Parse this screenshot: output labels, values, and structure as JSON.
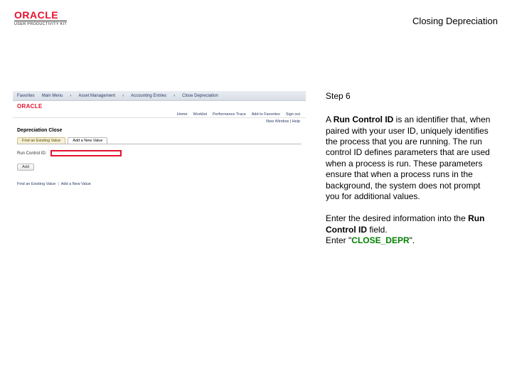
{
  "header": {
    "brand": "ORACLE",
    "brand_sub": "USER PRODUCTIVITY KIT",
    "doc_title": "Closing Depreciation"
  },
  "shot": {
    "topnav": [
      "Favorites",
      "Main Menu",
      "Asset Management",
      "Accounting Entries",
      "Close Depreciation"
    ],
    "logo": "ORACLE",
    "links": [
      "Home",
      "Worklist",
      "Performance Trace",
      "Add to Favorites",
      "Sign out"
    ],
    "new_window": "New Window | Help",
    "page_title": "Depreciation Close",
    "tabs": {
      "active": "Find an Existing Value",
      "other": "Add a New Value"
    },
    "field_label": "Run Control ID:",
    "button": "Add",
    "footer": {
      "a": "Find an Existing Value",
      "b": "Add a New Value"
    }
  },
  "instr": {
    "step": "Step 6",
    "p1_pre": "A ",
    "p1_bold": "Run Control ID",
    "p1_post": " is an identifier that, when paired with your user ID, uniquely identifies the process that you are running. The run control ID defines parameters that are used when a process is run. These parameters ensure that when a process runs in the background, the system does not prompt you for additional values.",
    "p2_line1_pre": "Enter the desired information into the ",
    "p2_line1_bold": "Run Control ID",
    "p2_line1_post": " field.",
    "p2_line2_pre": "Enter \"",
    "p2_line2_bold": "CLOSE_DEPR",
    "p2_line2_post": "\"."
  }
}
